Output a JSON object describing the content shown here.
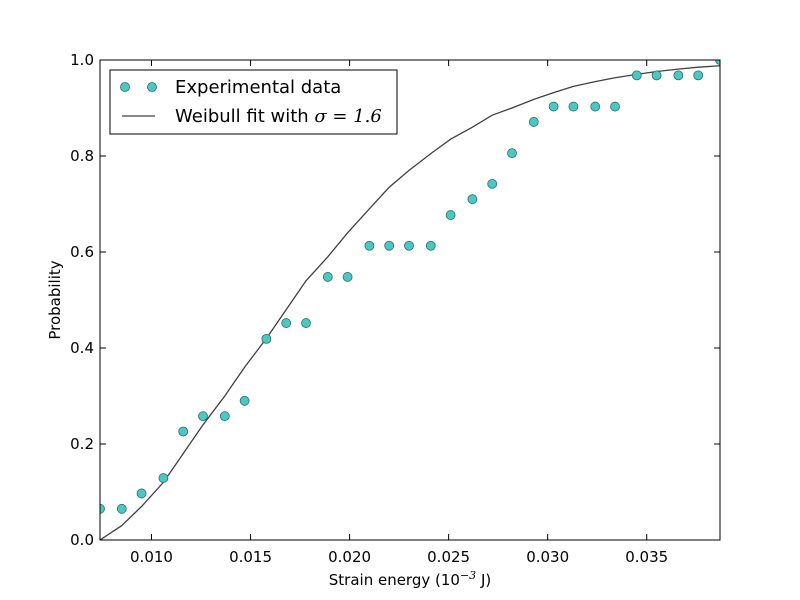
{
  "chart_data": {
    "type": "scatter",
    "xlabel": "Strain energy (10",
    "xlabel_exp": "−3",
    "xlabel_unit": " J)",
    "ylabel": "Probability",
    "xlim": [
      0.0074,
      0.0387
    ],
    "ylim": [
      0.0,
      1.0
    ],
    "xticks": [
      0.01,
      0.015,
      0.02,
      0.025,
      0.03,
      0.035
    ],
    "xtick_labels": [
      "0.010",
      "0.015",
      "0.020",
      "0.025",
      "0.030",
      "0.035"
    ],
    "yticks": [
      0.0,
      0.2,
      0.4,
      0.6,
      0.8,
      1.0
    ],
    "ytick_labels": [
      "0.0",
      "0.2",
      "0.4",
      "0.6",
      "0.8",
      "1.0"
    ],
    "grid": false,
    "legend_position": "top-left",
    "series": [
      {
        "name": "Experimental data",
        "kind": "markers",
        "color": "#4cc7c3",
        "x": [
          0.0074,
          0.0085,
          0.0095,
          0.0106,
          0.0116,
          0.0126,
          0.0137,
          0.0147,
          0.0158,
          0.0168,
          0.0178,
          0.0189,
          0.0199,
          0.021,
          0.022,
          0.023,
          0.0241,
          0.0251,
          0.0262,
          0.0272,
          0.0282,
          0.0293,
          0.0303,
          0.0313,
          0.0324,
          0.0334,
          0.0345,
          0.0355,
          0.0366,
          0.0376,
          0.0387
        ],
        "y": [
          0.065,
          0.065,
          0.097,
          0.129,
          0.226,
          0.258,
          0.258,
          0.29,
          0.419,
          0.452,
          0.452,
          0.548,
          0.548,
          0.613,
          0.613,
          0.613,
          0.613,
          0.677,
          0.71,
          0.742,
          0.806,
          0.871,
          0.903,
          0.903,
          0.903,
          0.903,
          0.968,
          0.968,
          0.968,
          0.968,
          1.0
        ]
      },
      {
        "name_prefix": "Weibull fit with ",
        "name_math": "σ = 1.6",
        "kind": "line",
        "color": "#404040",
        "x": [
          0.0074,
          0.0085,
          0.0095,
          0.0106,
          0.0116,
          0.0126,
          0.0137,
          0.0147,
          0.0158,
          0.0168,
          0.0178,
          0.0189,
          0.0199,
          0.021,
          0.022,
          0.023,
          0.0241,
          0.0251,
          0.0262,
          0.0272,
          0.0282,
          0.0293,
          0.0303,
          0.0313,
          0.0324,
          0.0334,
          0.0345,
          0.0355,
          0.0366,
          0.0376,
          0.0387
        ],
        "y": [
          0.0,
          0.03,
          0.07,
          0.12,
          0.18,
          0.24,
          0.3,
          0.36,
          0.42,
          0.48,
          0.54,
          0.59,
          0.64,
          0.69,
          0.735,
          0.77,
          0.805,
          0.835,
          0.86,
          0.885,
          0.9,
          0.918,
          0.932,
          0.945,
          0.955,
          0.963,
          0.97,
          0.976,
          0.981,
          0.985,
          0.988
        ]
      }
    ]
  }
}
